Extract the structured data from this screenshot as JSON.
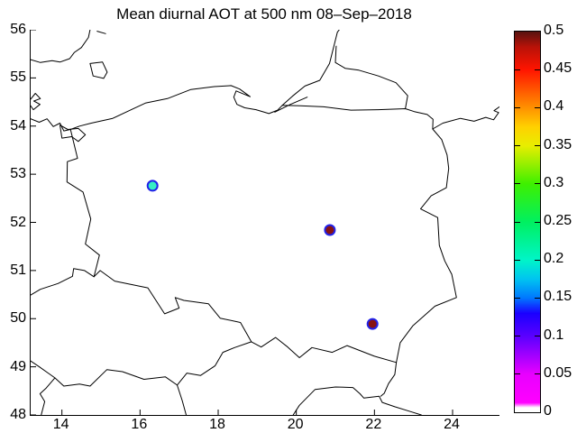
{
  "chart_data": {
    "type": "scatter",
    "title": "Mean diurnal AOT at 500 nm 08–Sep–2018",
    "xlabel": "",
    "ylabel": "",
    "xlim": [
      13.2,
      25.2
    ],
    "ylim": [
      48,
      56
    ],
    "grid": false,
    "x_ticks": [
      {
        "value": 14,
        "label": "14"
      },
      {
        "value": 16,
        "label": "16"
      },
      {
        "value": 18,
        "label": "18"
      },
      {
        "value": 20,
        "label": "20"
      },
      {
        "value": 22,
        "label": "22"
      },
      {
        "value": 24,
        "label": "24"
      }
    ],
    "y_ticks": [
      {
        "value": 48,
        "label": "48"
      },
      {
        "value": 49,
        "label": "49"
      },
      {
        "value": 50,
        "label": "50"
      },
      {
        "value": 51,
        "label": "51"
      },
      {
        "value": 52,
        "label": "52"
      },
      {
        "value": 53,
        "label": "53"
      },
      {
        "value": 54,
        "label": "54"
      },
      {
        "value": 55,
        "label": "55"
      },
      {
        "value": 56,
        "label": "56"
      }
    ],
    "points": [
      {
        "lon": 16.32,
        "lat": 52.76,
        "aot_estimated_from_color": 0.19,
        "fill": "#36efc4"
      },
      {
        "lon": 20.86,
        "lat": 51.84,
        "aot_estimated_from_color": 0.5,
        "fill": "#871212"
      },
      {
        "lon": 21.95,
        "lat": 49.89,
        "aot_estimated_from_color": 0.49,
        "fill": "#871212"
      }
    ],
    "marker_edge_color": "#2222e8",
    "line_color": "#000000",
    "colorbar": {
      "min": 0,
      "max": 0.5,
      "tick_labels": [
        "0",
        "0.05",
        "0.1",
        "0.15",
        "0.2",
        "0.25",
        "0.3",
        "0.35",
        "0.4",
        "0.45",
        "0.5"
      ],
      "gradient_stops": [
        {
          "pos": 0.0,
          "color": "#ffffff"
        },
        {
          "pos": 0.012,
          "color": "#ffffff"
        },
        {
          "pos": 0.025,
          "color": "#ff00ff"
        },
        {
          "pos": 0.1,
          "color": "#e800ff"
        },
        {
          "pos": 0.2,
          "color": "#5a00ff"
        },
        {
          "pos": 0.26,
          "color": "#1a00ff"
        },
        {
          "pos": 0.3,
          "color": "#0077ff"
        },
        {
          "pos": 0.35,
          "color": "#00c4f0"
        },
        {
          "pos": 0.4,
          "color": "#00f5c8"
        },
        {
          "pos": 0.5,
          "color": "#00f060"
        },
        {
          "pos": 0.6,
          "color": "#3ef000"
        },
        {
          "pos": 0.7,
          "color": "#e8ee00"
        },
        {
          "pos": 0.75,
          "color": "#ffd000"
        },
        {
          "pos": 0.8,
          "color": "#ff9100"
        },
        {
          "pos": 0.9,
          "color": "#ff1400"
        },
        {
          "pos": 0.96,
          "color": "#b81208"
        },
        {
          "pos": 1.0,
          "color": "#571310"
        }
      ]
    },
    "map_features": [
      {
        "name": "poland-border",
        "points": [
          [
            14.22,
            53.93
          ],
          [
            14.45,
            54.0
          ],
          [
            14.75,
            54.06
          ],
          [
            15.3,
            54.16
          ],
          [
            15.8,
            54.35
          ],
          [
            16.15,
            54.48
          ],
          [
            16.7,
            54.57
          ],
          [
            17.3,
            54.76
          ],
          [
            17.9,
            54.82
          ],
          [
            18.33,
            54.84
          ],
          [
            18.55,
            54.77
          ],
          [
            18.82,
            54.61
          ],
          [
            18.46,
            54.73
          ],
          [
            18.4,
            54.6
          ],
          [
            18.48,
            54.45
          ],
          [
            18.68,
            54.38
          ],
          [
            18.97,
            54.34
          ],
          [
            19.3,
            54.26
          ],
          [
            19.52,
            54.33
          ],
          [
            19.64,
            54.43
          ],
          [
            20.1,
            54.42
          ],
          [
            20.7,
            54.4
          ],
          [
            21.4,
            54.33
          ],
          [
            22.1,
            54.34
          ],
          [
            22.79,
            54.36
          ],
          [
            23.02,
            54.3
          ],
          [
            23.35,
            54.24
          ],
          [
            23.5,
            54.14
          ],
          [
            23.49,
            53.94
          ],
          [
            23.72,
            53.72
          ],
          [
            23.86,
            53.4
          ],
          [
            23.9,
            53.12
          ],
          [
            23.84,
            52.72
          ],
          [
            23.45,
            52.55
          ],
          [
            23.18,
            52.28
          ],
          [
            23.62,
            52.1
          ],
          [
            23.66,
            51.52
          ],
          [
            23.8,
            51.2
          ],
          [
            23.98,
            50.92
          ],
          [
            24.1,
            50.44
          ],
          [
            23.55,
            50.26
          ],
          [
            22.98,
            49.85
          ],
          [
            22.66,
            49.5
          ],
          [
            22.56,
            49.09
          ],
          [
            22.0,
            49.22
          ],
          [
            21.3,
            49.44
          ],
          [
            20.92,
            49.3
          ],
          [
            20.4,
            49.4
          ],
          [
            20.08,
            49.19
          ],
          [
            19.78,
            49.41
          ],
          [
            19.47,
            49.61
          ],
          [
            19.1,
            49.41
          ],
          [
            18.85,
            49.52
          ],
          [
            18.57,
            49.92
          ],
          [
            18.05,
            50.01
          ],
          [
            17.75,
            50.31
          ],
          [
            17.12,
            50.38
          ],
          [
            16.9,
            50.44
          ],
          [
            17.0,
            50.22
          ],
          [
            16.63,
            50.1
          ],
          [
            16.2,
            50.64
          ],
          [
            15.35,
            50.78
          ],
          [
            14.98,
            51.0
          ],
          [
            14.82,
            50.87
          ],
          [
            14.96,
            51.32
          ],
          [
            14.6,
            51.55
          ],
          [
            14.74,
            52.07
          ],
          [
            14.54,
            52.63
          ],
          [
            14.13,
            52.84
          ],
          [
            14.14,
            53.26
          ],
          [
            14.4,
            53.33
          ],
          [
            14.22,
            53.93
          ]
        ]
      },
      {
        "name": "czech-german-border-north",
        "points": [
          [
            14.82,
            50.87
          ],
          [
            14.58,
            51.0
          ],
          [
            14.3,
            51.04
          ],
          [
            14.27,
            50.88
          ],
          [
            13.9,
            50.73
          ],
          [
            13.45,
            50.61
          ],
          [
            13.2,
            50.49
          ]
        ]
      },
      {
        "name": "czech-south-and-slovak-border",
        "points": [
          [
            13.2,
            49.12
          ],
          [
            13.42,
            49.0
          ],
          [
            13.63,
            48.88
          ],
          [
            13.82,
            48.77
          ],
          [
            14.05,
            48.6
          ],
          [
            14.45,
            48.64
          ],
          [
            14.72,
            48.6
          ],
          [
            15.15,
            48.94
          ],
          [
            15.55,
            48.9
          ],
          [
            16.1,
            48.74
          ],
          [
            16.65,
            48.79
          ],
          [
            16.95,
            48.62
          ],
          [
            17.2,
            48.87
          ],
          [
            17.55,
            48.82
          ],
          [
            17.92,
            49.02
          ],
          [
            18.12,
            49.3
          ],
          [
            18.42,
            49.4
          ],
          [
            18.85,
            49.52
          ]
        ]
      },
      {
        "name": "german-austrian-border",
        "points": [
          [
            13.82,
            48.77
          ],
          [
            13.6,
            48.56
          ],
          [
            13.44,
            48.44
          ],
          [
            13.56,
            48.28
          ],
          [
            13.47,
            48.0
          ]
        ]
      },
      {
        "name": "slovak-austrian-border",
        "points": [
          [
            16.95,
            48.62
          ],
          [
            17.08,
            48.3
          ],
          [
            17.18,
            48.0
          ]
        ]
      },
      {
        "name": "slovak-hungarian-ukrainian-border",
        "points": [
          [
            19.92,
            48.0
          ],
          [
            20.08,
            48.2
          ],
          [
            20.48,
            48.53
          ],
          [
            21.0,
            48.58
          ],
          [
            21.45,
            48.57
          ],
          [
            21.63,
            48.44
          ],
          [
            21.73,
            48.35
          ],
          [
            22.12,
            48.39
          ],
          [
            22.2,
            48.26
          ],
          [
            22.52,
            48.17
          ],
          [
            22.88,
            48.08
          ],
          [
            23.2,
            48.0
          ]
        ]
      },
      {
        "name": "slovak-ukrainian-border",
        "points": [
          [
            22.56,
            49.09
          ],
          [
            22.52,
            48.84
          ],
          [
            22.36,
            48.65
          ],
          [
            22.25,
            48.45
          ],
          [
            22.16,
            48.39
          ]
        ]
      },
      {
        "name": "kaliningrad-coast-curonian-spit",
        "points": [
          [
            19.64,
            54.43
          ],
          [
            19.9,
            54.62
          ],
          [
            20.22,
            54.83
          ],
          [
            20.6,
            54.95
          ],
          [
            20.85,
            55.3
          ],
          [
            21.05,
            55.95
          ],
          [
            21.1,
            56.0
          ]
        ]
      },
      {
        "name": "curonian-lagoon-ru-lt-border",
        "points": [
          [
            21.02,
            55.66
          ],
          [
            21.0,
            55.32
          ],
          [
            21.25,
            55.2
          ],
          [
            21.6,
            55.16
          ],
          [
            22.1,
            55.04
          ],
          [
            22.55,
            54.9
          ],
          [
            22.85,
            54.63
          ],
          [
            22.79,
            54.36
          ]
        ]
      },
      {
        "name": "vistula-lagoon",
        "points": [
          [
            19.45,
            54.29
          ],
          [
            19.85,
            54.45
          ],
          [
            20.28,
            54.6
          ]
        ]
      },
      {
        "name": "lithuania-belarus-border",
        "points": [
          [
            23.49,
            53.94
          ],
          [
            23.75,
            54.06
          ],
          [
            24.2,
            54.16
          ],
          [
            24.55,
            54.1
          ],
          [
            24.85,
            54.18
          ],
          [
            25.05,
            54.13
          ],
          [
            25.18,
            54.28
          ],
          [
            25.06,
            54.32
          ],
          [
            25.2,
            54.4
          ]
        ]
      },
      {
        "name": "sweden-coast",
        "points": [
          [
            13.2,
            55.38
          ],
          [
            13.45,
            55.32
          ],
          [
            13.75,
            55.36
          ],
          [
            13.95,
            55.33
          ],
          [
            14.2,
            55.4
          ],
          [
            14.32,
            55.53
          ],
          [
            14.5,
            55.63
          ],
          [
            14.68,
            55.84
          ],
          [
            14.72,
            56.0
          ]
        ]
      },
      {
        "name": "sweden-coast-islet",
        "points": [
          [
            14.9,
            55.97
          ],
          [
            15.12,
            55.92
          ]
        ]
      },
      {
        "name": "bornholm-island",
        "points": [
          [
            14.72,
            55.3
          ],
          [
            15.04,
            55.33
          ],
          [
            15.16,
            55.12
          ],
          [
            15.07,
            54.99
          ],
          [
            14.8,
            55.04
          ],
          [
            14.72,
            55.3
          ]
        ]
      },
      {
        "name": "ruegen-island",
        "points": [
          [
            13.2,
            54.56
          ],
          [
            13.32,
            54.68
          ],
          [
            13.45,
            54.57
          ],
          [
            13.28,
            54.52
          ],
          [
            13.44,
            54.45
          ],
          [
            13.27,
            54.34
          ],
          [
            13.2,
            54.42
          ]
        ]
      },
      {
        "name": "german-baltic-coast",
        "points": [
          [
            13.2,
            54.15
          ],
          [
            13.42,
            54.08
          ],
          [
            13.62,
            54.15
          ],
          [
            13.78,
            53.99
          ],
          [
            13.95,
            54.06
          ],
          [
            14.05,
            53.9
          ],
          [
            14.22,
            53.93
          ]
        ]
      },
      {
        "name": "szczecin-lagoon",
        "points": [
          [
            13.95,
            54.02
          ],
          [
            14.15,
            53.93
          ],
          [
            14.42,
            53.95
          ],
          [
            14.6,
            53.82
          ],
          [
            14.42,
            53.68
          ],
          [
            14.25,
            53.78
          ],
          [
            14.0,
            53.75
          ],
          [
            13.95,
            54.02
          ]
        ]
      }
    ]
  }
}
